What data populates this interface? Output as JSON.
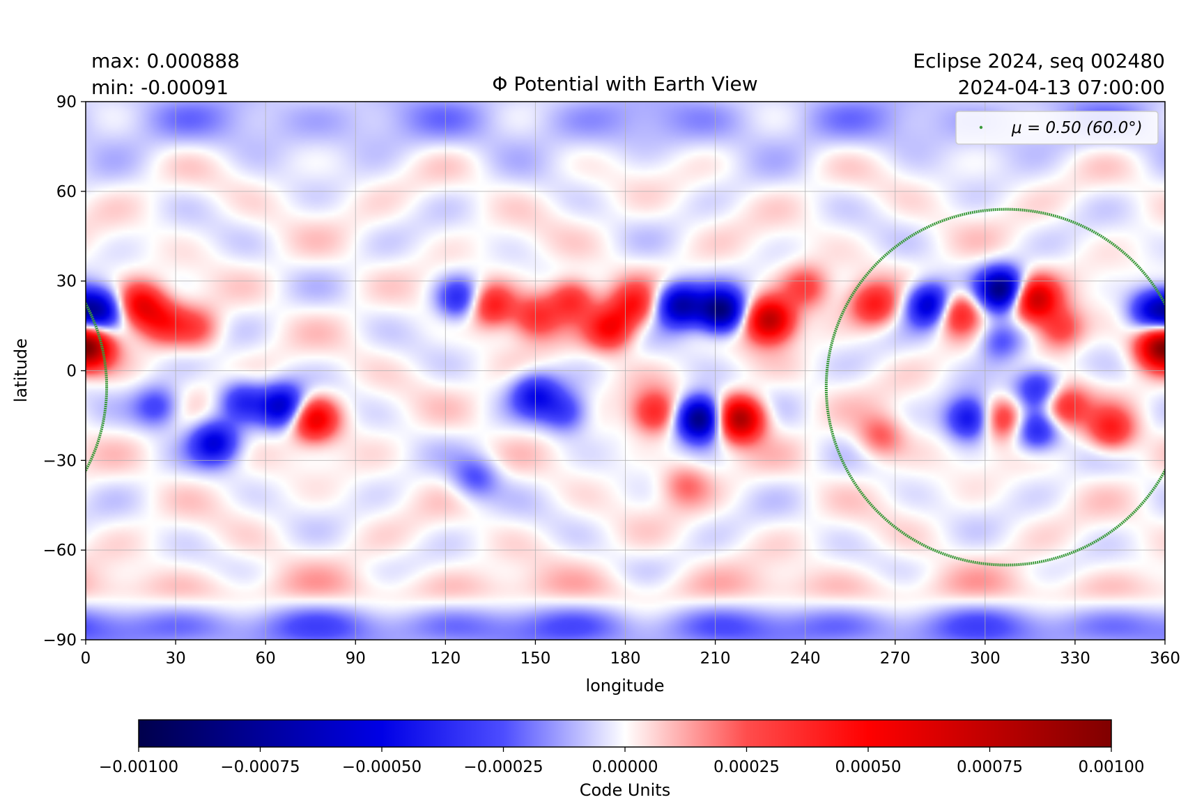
{
  "chart_data": {
    "type": "heatmap",
    "title": "Φ Potential with Earth View",
    "info_left": [
      "max:  0.000888",
      "min:  -0.00091"
    ],
    "info_right": [
      "Eclipse 2024, seq 002480",
      "2024-04-13 07:00:00"
    ],
    "xlabel": "longitude",
    "ylabel": "latitude",
    "xlim": [
      0,
      360
    ],
    "ylim": [
      -90,
      90
    ],
    "x_ticks": [
      0,
      30,
      60,
      90,
      120,
      150,
      180,
      210,
      240,
      270,
      300,
      330,
      360
    ],
    "y_ticks": [
      90,
      60,
      30,
      0,
      -30,
      -60,
      -90
    ],
    "y_tick_labels": [
      "90",
      "60",
      "30",
      "0",
      "−30",
      "−60",
      "−90"
    ],
    "grid": true,
    "colormap": "seismic",
    "color_limits": [
      -0.001,
      0.001
    ],
    "colorbar": {
      "label": "Code Units",
      "ticks": [
        -0.001,
        -0.00075,
        -0.0005,
        -0.00025,
        0,
        0.00025,
        0.0005,
        0.00075,
        0.001
      ],
      "tick_labels": [
        "−0.00100",
        "−0.00075",
        "−0.00050",
        "−0.00025",
        "0.00000",
        "0.00025",
        "0.00050",
        "0.00075",
        "0.00100"
      ]
    },
    "legend": {
      "position": "top-right",
      "entries": [
        "μ = 0.50 (60.0°)"
      ],
      "color": "#3a9a3a"
    },
    "contour": {
      "name": "μ = 0.50 (60.0°)",
      "center_lon": 307,
      "lat_top": 54,
      "lat_bottom": -65,
      "lon_left": 247,
      "lon_right": 367
    },
    "features": [
      {
        "lon": 5,
        "lat": 20,
        "amp": -0.0006
      },
      {
        "lon": 18,
        "lat": 22,
        "amp": 0.00055
      },
      {
        "lon": 26,
        "lat": 16,
        "amp": 0.00035
      },
      {
        "lon": 2,
        "lat": 8,
        "amp": 0.0005
      },
      {
        "lon": 24,
        "lat": -12,
        "amp": -0.0003
      },
      {
        "lon": 43,
        "lat": -24,
        "amp": -0.0005
      },
      {
        "lon": 52,
        "lat": -10,
        "amp": -0.00035
      },
      {
        "lon": 66,
        "lat": -12,
        "amp": -0.0006
      },
      {
        "lon": 76,
        "lat": -16,
        "amp": 0.0006
      },
      {
        "lon": 37,
        "lat": 14,
        "amp": 0.00025
      },
      {
        "lon": 125,
        "lat": 24,
        "amp": -0.0004
      },
      {
        "lon": 135,
        "lat": 22,
        "amp": 0.00045
      },
      {
        "lon": 150,
        "lat": 18,
        "amp": 0.00035
      },
      {
        "lon": 162,
        "lat": 24,
        "amp": 0.0004
      },
      {
        "lon": 175,
        "lat": 14,
        "amp": 0.0005
      },
      {
        "lon": 183,
        "lat": 22,
        "amp": 0.0004
      },
      {
        "lon": 198,
        "lat": 22,
        "amp": -0.0007
      },
      {
        "lon": 212,
        "lat": 20,
        "amp": -0.00085
      },
      {
        "lon": 228,
        "lat": 17,
        "amp": 0.0008
      },
      {
        "lon": 240,
        "lat": 28,
        "amp": 0.0003
      },
      {
        "lon": 150,
        "lat": -8,
        "amp": -0.0004
      },
      {
        "lon": 160,
        "lat": -14,
        "amp": -0.0003
      },
      {
        "lon": 190,
        "lat": -14,
        "amp": 0.0004
      },
      {
        "lon": 205,
        "lat": -16,
        "amp": -0.00091
      },
      {
        "lon": 218,
        "lat": -16,
        "amp": 0.00088
      },
      {
        "lon": 130,
        "lat": -36,
        "amp": -0.00025
      },
      {
        "lon": 200,
        "lat": -38,
        "amp": 0.0002
      },
      {
        "lon": 263,
        "lat": 22,
        "amp": 0.0004
      },
      {
        "lon": 282,
        "lat": 22,
        "amp": -0.0007
      },
      {
        "lon": 290,
        "lat": 20,
        "amp": 0.0005
      },
      {
        "lon": 306,
        "lat": 27,
        "amp": -0.00085
      },
      {
        "lon": 316,
        "lat": 24,
        "amp": 0.00075
      },
      {
        "lon": 305,
        "lat": 10,
        "amp": -0.0003
      },
      {
        "lon": 325,
        "lat": 14,
        "amp": 0.00035
      },
      {
        "lon": 356,
        "lat": 20,
        "amp": -0.0005
      },
      {
        "lon": 358,
        "lat": 8,
        "amp": 0.0006
      },
      {
        "lon": 295,
        "lat": -16,
        "amp": -0.0005
      },
      {
        "lon": 306,
        "lat": -16,
        "amp": 0.0004
      },
      {
        "lon": 317,
        "lat": -20,
        "amp": -0.0004
      },
      {
        "lon": 326,
        "lat": -12,
        "amp": 0.0004
      },
      {
        "lon": 342,
        "lat": -20,
        "amp": 0.0004
      },
      {
        "lon": 318,
        "lat": -6,
        "amp": -0.0004
      },
      {
        "lon": 265,
        "lat": -22,
        "amp": 0.00025
      }
    ],
    "bands": [
      {
        "lat": -86,
        "width": 6,
        "amp": -0.0002
      },
      {
        "lat": 84,
        "width": 8,
        "amp": -0.00012
      },
      {
        "lat": -74,
        "width": 5,
        "amp": 8e-05
      }
    ]
  }
}
